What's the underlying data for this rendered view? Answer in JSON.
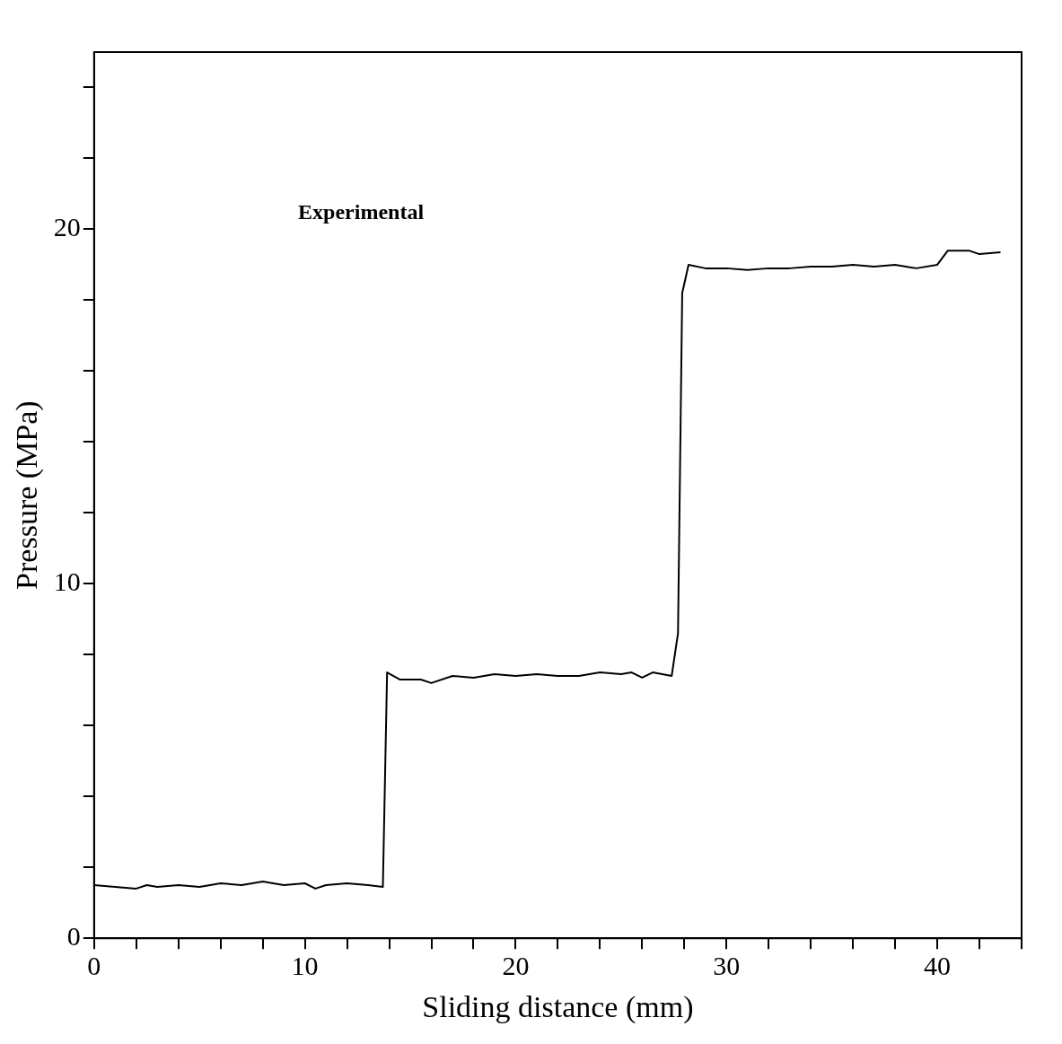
{
  "chart_data": {
    "type": "line",
    "xlabel": "Sliding distance (mm)",
    "ylabel": "Pressure (MPa)",
    "annotations": [
      "Experimental"
    ],
    "xlim": [
      0,
      44
    ],
    "ylim": [
      0,
      25
    ],
    "xticks": [
      0,
      {
        "value": 2,
        "label": null
      },
      {
        "value": 4,
        "label": null
      },
      {
        "value": 6,
        "label": null
      },
      {
        "value": 8,
        "label": null
      },
      10,
      {
        "value": 12,
        "label": null
      },
      {
        "value": 14,
        "label": null
      },
      {
        "value": 16,
        "label": null
      },
      {
        "value": 18,
        "label": null
      },
      20,
      {
        "value": 22,
        "label": null
      },
      {
        "value": 24,
        "label": null
      },
      {
        "value": 26,
        "label": null
      },
      {
        "value": 28,
        "label": null
      },
      30,
      {
        "value": 32,
        "label": null
      },
      {
        "value": 34,
        "label": null
      },
      {
        "value": 36,
        "label": null
      },
      {
        "value": 38,
        "label": null
      },
      40,
      {
        "value": 42,
        "label": null
      },
      {
        "value": 44,
        "label": null
      }
    ],
    "yticks": [
      0,
      {
        "value": 2,
        "label": null
      },
      {
        "value": 4,
        "label": null
      },
      {
        "value": 6,
        "label": null
      },
      {
        "value": 8,
        "label": null
      },
      10,
      {
        "value": 12,
        "label": null
      },
      {
        "value": 14,
        "label": null
      },
      {
        "value": 16,
        "label": null
      },
      {
        "value": 18,
        "label": null
      },
      20,
      {
        "value": 22,
        "label": null
      },
      {
        "value": 24,
        "label": null
      }
    ],
    "grid": false,
    "legend": false,
    "series": [
      {
        "color": "#000000",
        "x": [
          0,
          1,
          2,
          2.5,
          3,
          4,
          5,
          6,
          7,
          8,
          9,
          10,
          10.5,
          11,
          12,
          13,
          13.7,
          13.9,
          14.5,
          15.5,
          16,
          17,
          18,
          19,
          20,
          21,
          22,
          23,
          24,
          25,
          25.5,
          26,
          26.5,
          27.4,
          27.7,
          27.9,
          28.2,
          29,
          30,
          31,
          32,
          33,
          34,
          35,
          36,
          37,
          38,
          39,
          40,
          40.5,
          41.5,
          42,
          43
        ],
        "values": [
          1.5,
          1.45,
          1.4,
          1.5,
          1.45,
          1.5,
          1.45,
          1.55,
          1.5,
          1.6,
          1.5,
          1.55,
          1.4,
          1.5,
          1.55,
          1.5,
          1.45,
          7.5,
          7.3,
          7.3,
          7.2,
          7.4,
          7.35,
          7.45,
          7.4,
          7.45,
          7.4,
          7.4,
          7.5,
          7.45,
          7.5,
          7.35,
          7.5,
          7.4,
          8.6,
          18.2,
          19.0,
          18.9,
          18.9,
          18.85,
          18.9,
          18.9,
          18.95,
          18.95,
          19.0,
          18.95,
          19.0,
          18.9,
          19.0,
          19.4,
          19.4,
          19.3,
          19.35
        ]
      }
    ]
  }
}
